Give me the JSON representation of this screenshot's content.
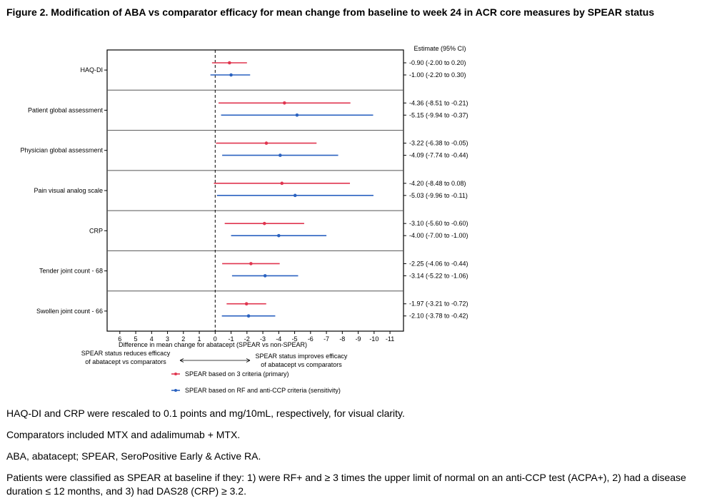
{
  "title": "Figure 2. Modification of ABA vs comparator efficacy for mean change from baseline to week 24 in ACR core measures by SPEAR status",
  "chart_data": {
    "type": "forest",
    "xlabel": "Difference in mean change for abatacept (SPEAR vs non-SPEAR)",
    "xlim": [
      6.8,
      -11.85
    ],
    "x_reversed": true,
    "xticks": [
      6,
      5,
      4,
      3,
      2,
      1,
      0,
      -1,
      -2,
      -3,
      -4,
      -5,
      -6,
      -7,
      -8,
      -9,
      -10,
      -11
    ],
    "reference_line": 0,
    "estimate_header": "Estimate (95% CI)",
    "direction_left": [
      "SPEAR status reduces efficacy",
      "of abatacept vs comparators"
    ],
    "direction_right": [
      "SPEAR status improves efficacy",
      "of abatacept vs comparators"
    ],
    "series": [
      {
        "name": "SPEAR based on 3 criteria (primary)",
        "color": "#e0354f"
      },
      {
        "name": "SPEAR based on RF and anti-CCP criteria (sensitivity)",
        "color": "#2a62c0"
      }
    ],
    "rows": [
      {
        "label": "HAQ-DI",
        "estimates": [
          {
            "est": -0.9,
            "lo": -2.0,
            "hi": 0.2,
            "text": "-0.90 (-2.00 to 0.20)"
          },
          {
            "est": -1.0,
            "lo": -2.2,
            "hi": 0.3,
            "text": "-1.00 (-2.20 to 0.30)"
          }
        ]
      },
      {
        "label": "Patient global assessment",
        "estimates": [
          {
            "est": -4.36,
            "lo": -8.51,
            "hi": -0.21,
            "text": "-4.36 (-8.51 to -0.21)"
          },
          {
            "est": -5.15,
            "lo": -9.94,
            "hi": -0.37,
            "text": "-5.15 (-9.94 to -0.37)"
          }
        ]
      },
      {
        "label": "Physician global assessment",
        "estimates": [
          {
            "est": -3.22,
            "lo": -6.38,
            "hi": -0.05,
            "text": "-3.22 (-6.38 to -0.05)"
          },
          {
            "est": -4.09,
            "lo": -7.74,
            "hi": -0.44,
            "text": "-4.09 (-7.74 to -0.44)"
          }
        ]
      },
      {
        "label": "Pain visual analog scale",
        "estimates": [
          {
            "est": -4.2,
            "lo": -8.48,
            "hi": 0.08,
            "text": "-4.20 (-8.48 to 0.08)"
          },
          {
            "est": -5.03,
            "lo": -9.96,
            "hi": -0.11,
            "text": "-5.03 (-9.96 to -0.11)"
          }
        ]
      },
      {
        "label": "CRP",
        "estimates": [
          {
            "est": -3.1,
            "lo": -5.6,
            "hi": -0.6,
            "text": "-3.10 (-5.60 to -0.60)"
          },
          {
            "est": -4.0,
            "lo": -7.0,
            "hi": -1.0,
            "text": "-4.00 (-7.00 to -1.00)"
          }
        ]
      },
      {
        "label": "Tender joint count - 68",
        "estimates": [
          {
            "est": -2.25,
            "lo": -4.06,
            "hi": -0.44,
            "text": "-2.25 (-4.06 to -0.44)"
          },
          {
            "est": -3.14,
            "lo": -5.22,
            "hi": -1.06,
            "text": "-3.14 (-5.22 to -1.06)"
          }
        ]
      },
      {
        "label": "Swollen joint count - 66",
        "estimates": [
          {
            "est": -1.97,
            "lo": -3.21,
            "hi": -0.72,
            "text": "-1.97 (-3.21 to -0.72)"
          },
          {
            "est": -2.1,
            "lo": -3.78,
            "hi": -0.42,
            "text": "-2.10 (-3.78 to -0.42)"
          }
        ]
      }
    ]
  },
  "notes": [
    "HAQ-DI and CRP were rescaled to 0.1 points and mg/10mL, respectively, for visual clarity.",
    "Comparators included MTX and adalimumab + MTX.",
    "ABA, abatacept; SPEAR, SeroPositive Early & Active RA.",
    "Patients were classified as SPEAR at baseline if they: 1) were RF+ and ≥ 3 times the upper limit of normal on an anti-CCP test (ACPA+), 2) had a disease duration ≤ 12 months, and 3) had DAS28 (CRP) ≥ 3.2."
  ]
}
